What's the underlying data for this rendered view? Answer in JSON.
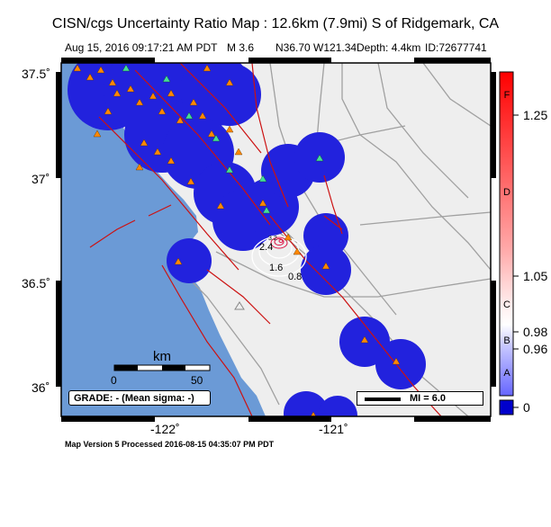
{
  "header": {
    "title": "CISN/cgs Uncertainty Ratio Map : 12.6km (7.9mi) S of Ridgemark, CA",
    "date": "Aug 15, 2016 09:17:21 AM PDT",
    "magnitude": "M 3.6",
    "coords": "N36.70 W121.34",
    "depth": "Depth: 4.4km",
    "event_id": "ID:72677741"
  },
  "axes": {
    "latitude_labels": [
      "37.5˚",
      "37˚",
      "36.5˚",
      "36˚"
    ],
    "longitude_labels": [
      "-122˚",
      "-121˚"
    ]
  },
  "colorbar": {
    "tick_labels": [
      "1.25",
      "1.05",
      "0.98",
      "0.96",
      "0"
    ],
    "grade_letters": [
      "F",
      "D",
      "C",
      "B",
      "A"
    ],
    "top_color": "#ff0000",
    "bottom_color": "#0000cc"
  },
  "scale_bar": {
    "unit": "km",
    "label_0": "0",
    "label_50": "50"
  },
  "grade_box": {
    "text": "GRADE: - (Mean sigma: -)"
  },
  "mi_legend": {
    "text": "MI = 6.0"
  },
  "contour_labels": [
    "2.4",
    "1.6",
    "0.8",
    "3.2"
  ],
  "footer": {
    "text": "Map Version 5 Processed 2016-08-15 04:35:07 PM PDT"
  },
  "colors": {
    "ocean": "#6b9ad6",
    "land": "#eeeeee",
    "uncertainty_blue": "#2222dd",
    "fault": "#cc1111",
    "road": "#a0a0a0",
    "station_triangle": "#ff8800",
    "seismic_station": "#44dd99"
  }
}
